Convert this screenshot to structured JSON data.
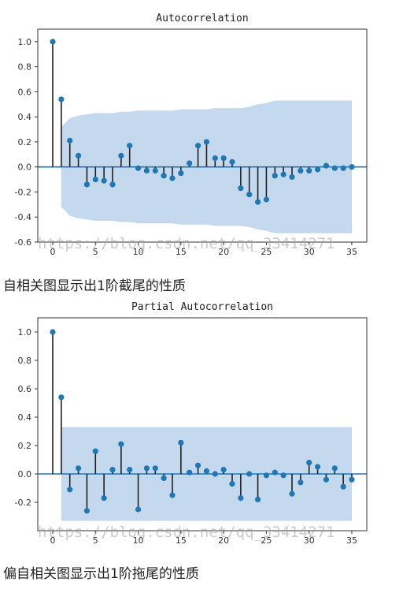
{
  "charts_meta": {
    "stem_color": "#1f1f1f",
    "marker_color": "#1f77b4",
    "band_color": "#c5d9ee",
    "axis_color": "#333333"
  },
  "watermark_text": "https://blog.csdn.net/qq_33414271",
  "captions": {
    "acf": "自相关图显示出1阶截尾的性质",
    "pacf": "偏自相关图显示出1阶拖尾的性质"
  },
  "chart_data": [
    {
      "type": "stem",
      "title": "Autocorrelation",
      "xlabel": "",
      "ylabel": "",
      "xlim": [
        -1.75,
        36.75
      ],
      "ylim": [
        -0.6,
        1.1
      ],
      "xticks": [
        0,
        5,
        10,
        15,
        20,
        25,
        30,
        35
      ],
      "yticks": [
        1.0,
        0.8,
        0.6,
        0.4,
        0.2,
        0.0,
        -0.2,
        -0.4,
        -0.6
      ],
      "lags": [
        0,
        1,
        2,
        3,
        4,
        5,
        6,
        7,
        8,
        9,
        10,
        11,
        12,
        13,
        14,
        15,
        16,
        17,
        18,
        19,
        20,
        21,
        22,
        23,
        24,
        25,
        26,
        27,
        28,
        29,
        30,
        31,
        32,
        33,
        34,
        35
      ],
      "values": [
        1.0,
        0.54,
        0.21,
        0.09,
        -0.14,
        -0.1,
        -0.11,
        -0.14,
        0.09,
        0.17,
        -0.01,
        -0.03,
        -0.03,
        -0.07,
        -0.09,
        -0.05,
        0.03,
        0.17,
        0.2,
        0.07,
        0.07,
        0.04,
        -0.17,
        -0.22,
        -0.28,
        -0.26,
        -0.07,
        -0.06,
        -0.08,
        -0.03,
        -0.03,
        -0.02,
        0.01,
        -0.01,
        -0.01,
        0.0
      ],
      "confint_upper": [
        null,
        0.32,
        0.39,
        0.41,
        0.42,
        0.43,
        0.43,
        0.43,
        0.44,
        0.44,
        0.45,
        0.45,
        0.45,
        0.45,
        0.45,
        0.46,
        0.46,
        0.46,
        0.46,
        0.47,
        0.47,
        0.47,
        0.47,
        0.48,
        0.5,
        0.51,
        0.53,
        0.53,
        0.53,
        0.53,
        0.53,
        0.53,
        0.53,
        0.53,
        0.53,
        0.53
      ],
      "grid": false
    },
    {
      "type": "stem",
      "title": "Partial Autocorrelation",
      "xlabel": "",
      "ylabel": "",
      "xlim": [
        -1.75,
        36.75
      ],
      "ylim": [
        -0.4,
        1.1
      ],
      "xticks": [
        0,
        5,
        10,
        15,
        20,
        25,
        30,
        35
      ],
      "yticks": [
        1.0,
        0.8,
        0.6,
        0.4,
        0.2,
        0.0,
        -0.2
      ],
      "lags": [
        0,
        1,
        2,
        3,
        4,
        5,
        6,
        7,
        8,
        9,
        10,
        11,
        12,
        13,
        14,
        15,
        16,
        17,
        18,
        19,
        20,
        21,
        22,
        23,
        24,
        25,
        26,
        27,
        28,
        29,
        30,
        31,
        32,
        33,
        34,
        35
      ],
      "values": [
        1.0,
        0.54,
        -0.11,
        0.04,
        -0.26,
        0.16,
        -0.17,
        0.03,
        0.21,
        0.03,
        -0.25,
        0.04,
        0.04,
        -0.03,
        -0.15,
        0.22,
        0.01,
        0.06,
        0.02,
        0.0,
        0.03,
        -0.07,
        -0.17,
        0.0,
        -0.18,
        -0.01,
        0.01,
        -0.01,
        -0.14,
        -0.06,
        0.08,
        0.05,
        -0.04,
        0.04,
        -0.09,
        -0.04
      ],
      "confint_upper": [
        null,
        0.33,
        0.33,
        0.33,
        0.33,
        0.33,
        0.33,
        0.33,
        0.33,
        0.33,
        0.33,
        0.33,
        0.33,
        0.33,
        0.33,
        0.33,
        0.33,
        0.33,
        0.33,
        0.33,
        0.33,
        0.33,
        0.33,
        0.33,
        0.33,
        0.33,
        0.33,
        0.33,
        0.33,
        0.33,
        0.33,
        0.33,
        0.33,
        0.33,
        0.33,
        0.33
      ],
      "grid": false
    }
  ]
}
